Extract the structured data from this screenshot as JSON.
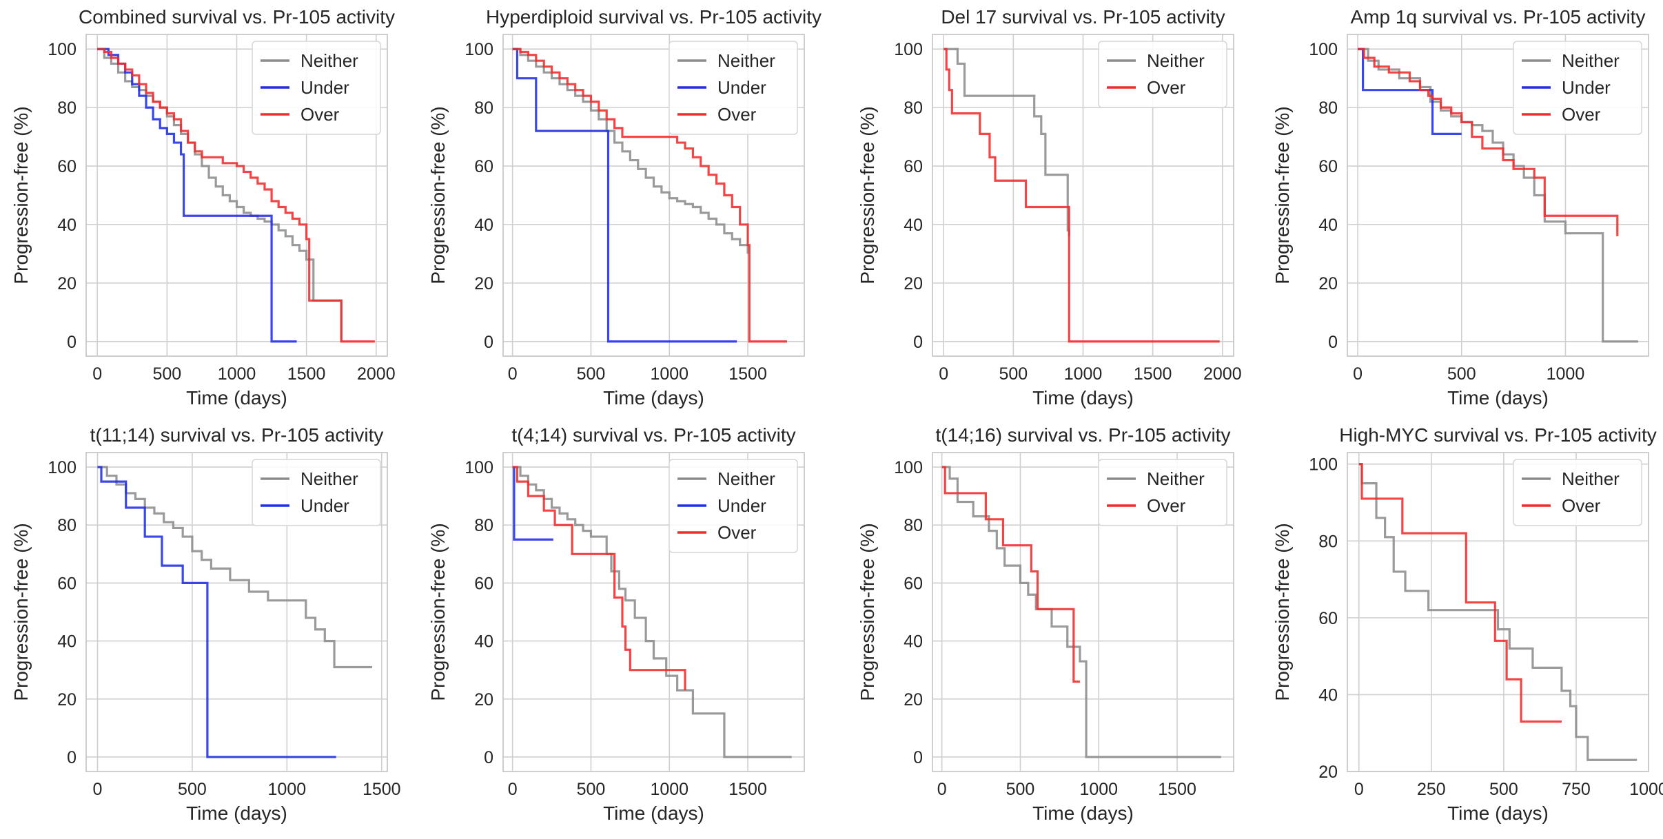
{
  "figure": {
    "colors": {
      "Neither": "#8c8c8c",
      "Under": "#1f2fe6",
      "Over": "#f02b2b",
      "grid": "#cfcfcf",
      "spine": "#c9c9c9"
    }
  },
  "chart_data": [
    {
      "type": "line",
      "title": "Combined survival vs. Pr-105 activity",
      "xlabel": "Time (days)",
      "ylabel": "Progression-free (%)",
      "xlim": [
        -80,
        2080
      ],
      "ylim": [
        -5,
        105
      ],
      "xticks": [
        0,
        500,
        1000,
        1500,
        2000
      ],
      "yticks": [
        0,
        20,
        40,
        60,
        80,
        100
      ],
      "legend": "top-right",
      "series": [
        {
          "name": "Neither",
          "x": [
            0,
            50,
            100,
            150,
            200,
            250,
            300,
            350,
            400,
            450,
            500,
            550,
            600,
            650,
            700,
            750,
            800,
            850,
            900,
            950,
            1000,
            1050,
            1100,
            1150,
            1200,
            1250,
            1300,
            1350,
            1400,
            1450,
            1500,
            1550,
            1750
          ],
          "y": [
            100,
            97,
            95,
            92,
            89,
            87,
            86,
            84,
            82,
            80,
            77,
            74,
            71,
            68,
            64,
            60,
            56,
            53,
            50,
            48,
            46,
            44,
            43,
            42,
            41,
            40,
            38,
            36,
            33,
            31,
            28,
            14,
            0
          ]
        },
        {
          "name": "Under",
          "x": [
            0,
            80,
            150,
            200,
            250,
            300,
            350,
            400,
            450,
            500,
            550,
            600,
            620,
            1250,
            1430
          ],
          "y": [
            100,
            98,
            95,
            92,
            88,
            84,
            80,
            76,
            73,
            71,
            68,
            64,
            43,
            0,
            0
          ]
        },
        {
          "name": "Over",
          "x": [
            0,
            50,
            100,
            150,
            200,
            250,
            300,
            350,
            400,
            450,
            500,
            550,
            600,
            650,
            700,
            750,
            800,
            900,
            1000,
            1050,
            1100,
            1150,
            1200,
            1250,
            1300,
            1350,
            1400,
            1450,
            1500,
            1520,
            1750,
            1990
          ],
          "y": [
            100,
            99,
            97,
            95,
            93,
            91,
            88,
            85,
            82,
            80,
            78,
            76,
            72,
            68,
            65,
            63,
            63,
            61,
            60,
            58,
            56,
            54,
            52,
            48,
            46,
            44,
            42,
            40,
            35,
            14,
            0,
            0
          ]
        }
      ]
    },
    {
      "type": "line",
      "title": "Hyperdiploid survival vs. Pr-105 activity",
      "xlabel": "Time (days)",
      "ylabel": "Progression-free (%)",
      "xlim": [
        -60,
        1860
      ],
      "ylim": [
        -5,
        105
      ],
      "xticks": [
        0,
        500,
        1000,
        1500
      ],
      "yticks": [
        0,
        20,
        40,
        60,
        80,
        100
      ],
      "legend": "top-right",
      "series": [
        {
          "name": "Neither",
          "x": [
            0,
            50,
            100,
            150,
            200,
            250,
            300,
            350,
            400,
            450,
            500,
            550,
            600,
            650,
            700,
            750,
            800,
            850,
            900,
            950,
            1000,
            1050,
            1100,
            1150,
            1200,
            1250,
            1300,
            1350,
            1400,
            1450,
            1500
          ],
          "y": [
            100,
            98,
            96,
            94,
            92,
            90,
            88,
            86,
            84,
            82,
            79,
            76,
            72,
            68,
            65,
            62,
            59,
            56,
            53,
            51,
            49,
            48,
            47,
            46,
            44,
            42,
            40,
            37,
            35,
            33,
            30
          ]
        },
        {
          "name": "Under",
          "x": [
            0,
            30,
            150,
            610,
            1430
          ],
          "y": [
            100,
            90,
            72,
            0,
            0
          ]
        },
        {
          "name": "Over",
          "x": [
            0,
            50,
            100,
            150,
            200,
            250,
            300,
            350,
            400,
            450,
            500,
            550,
            600,
            650,
            700,
            1000,
            1050,
            1100,
            1150,
            1200,
            1250,
            1300,
            1350,
            1400,
            1450,
            1500,
            1510,
            1750
          ],
          "y": [
            100,
            99,
            98,
            96,
            94,
            92,
            90,
            88,
            86,
            84,
            82,
            79,
            76,
            73,
            70,
            70,
            68,
            66,
            63,
            60,
            57,
            54,
            50,
            46,
            40,
            33,
            0,
            0
          ]
        }
      ]
    },
    {
      "type": "line",
      "title": "Del 17 survival vs. Pr-105 activity",
      "xlabel": "Time (days)",
      "ylabel": "Progression-free (%)",
      "xlim": [
        -80,
        2080
      ],
      "ylim": [
        -5,
        105
      ],
      "xticks": [
        0,
        500,
        1000,
        1500,
        2000
      ],
      "yticks": [
        0,
        20,
        40,
        60,
        80,
        100
      ],
      "legend": "top-right",
      "series": [
        {
          "name": "Neither",
          "x": [
            0,
            100,
            150,
            600,
            650,
            700,
            730,
            860,
            890,
            900
          ],
          "y": [
            100,
            95,
            84,
            84,
            77,
            71,
            57,
            57,
            38,
            36
          ]
        },
        {
          "name": "Over",
          "x": [
            0,
            20,
            40,
            60,
            200,
            260,
            330,
            370,
            590,
            880,
            900,
            1980
          ],
          "y": [
            100,
            93,
            86,
            78,
            78,
            71,
            63,
            55,
            46,
            46,
            0,
            0
          ]
        }
      ]
    },
    {
      "type": "line",
      "title": "Amp 1q survival vs. Pr-105 activity",
      "xlabel": "Time (days)",
      "ylabel": "Progression-free (%)",
      "xlim": [
        -50,
        1400
      ],
      "ylim": [
        -5,
        105
      ],
      "xticks": [
        0,
        500,
        1000
      ],
      "yticks": [
        0,
        20,
        40,
        60,
        80,
        100
      ],
      "legend": "top-right",
      "series": [
        {
          "name": "Neither",
          "x": [
            0,
            50,
            100,
            200,
            300,
            350,
            400,
            450,
            500,
            550,
            600,
            650,
            700,
            750,
            800,
            850,
            900,
            1000,
            1180,
            1350
          ],
          "y": [
            100,
            96,
            93,
            90,
            87,
            82,
            79,
            77,
            75,
            74,
            72,
            68,
            64,
            60,
            56,
            50,
            41,
            37,
            0,
            0
          ]
        },
        {
          "name": "Under",
          "x": [
            0,
            25,
            350,
            360,
            500
          ],
          "y": [
            100,
            86,
            86,
            71,
            71
          ]
        },
        {
          "name": "Over",
          "x": [
            0,
            30,
            80,
            150,
            250,
            300,
            340,
            360,
            400,
            450,
            500,
            550,
            600,
            700,
            750,
            850,
            900,
            1000,
            1230,
            1250
          ],
          "y": [
            100,
            97,
            94,
            92,
            89,
            86,
            84,
            83,
            80,
            78,
            75,
            70,
            66,
            62,
            59,
            56,
            43,
            43,
            43,
            36
          ]
        }
      ]
    },
    {
      "type": "line",
      "title": "t(11;14) survival vs. Pr-105 activity",
      "xlabel": "Time (days)",
      "ylabel": "Progression-free (%)",
      "xlim": [
        -60,
        1530
      ],
      "ylim": [
        -5,
        105
      ],
      "xticks": [
        0,
        500,
        1000,
        1500
      ],
      "yticks": [
        0,
        20,
        40,
        60,
        80,
        100
      ],
      "legend": "top-right",
      "series": [
        {
          "name": "Neither",
          "x": [
            0,
            50,
            100,
            150,
            200,
            250,
            300,
            350,
            400,
            450,
            500,
            550,
            600,
            700,
            800,
            900,
            1100,
            1150,
            1200,
            1250,
            1450
          ],
          "y": [
            100,
            97,
            94,
            91,
            89,
            86,
            84,
            81,
            79,
            76,
            71,
            68,
            65,
            61,
            57,
            54,
            48,
            44,
            40,
            31,
            31
          ]
        },
        {
          "name": "Under",
          "x": [
            0,
            20,
            150,
            250,
            340,
            450,
            580,
            1260
          ],
          "y": [
            100,
            95,
            86,
            76,
            66,
            60,
            0,
            0
          ]
        }
      ]
    },
    {
      "type": "line",
      "title": "t(4;14) survival vs. Pr-105 activity",
      "xlabel": "Time (days)",
      "ylabel": "Progression-free (%)",
      "xlim": [
        -60,
        1860
      ],
      "ylim": [
        -5,
        105
      ],
      "xticks": [
        0,
        500,
        1000,
        1500
      ],
      "yticks": [
        0,
        20,
        40,
        60,
        80,
        100
      ],
      "legend": "top-right",
      "series": [
        {
          "name": "Neither",
          "x": [
            0,
            50,
            100,
            150,
            200,
            250,
            300,
            350,
            400,
            450,
            500,
            600,
            630,
            680,
            720,
            780,
            850,
            900,
            980,
            1050,
            1150,
            1350,
            1780
          ],
          "y": [
            100,
            97,
            94,
            92,
            89,
            86,
            84,
            82,
            80,
            78,
            76,
            70,
            64,
            58,
            54,
            48,
            40,
            34,
            28,
            23,
            15,
            0,
            0
          ]
        },
        {
          "name": "Under",
          "x": [
            0,
            10,
            260
          ],
          "y": [
            100,
            75,
            75
          ]
        },
        {
          "name": "Over",
          "x": [
            0,
            30,
            100,
            200,
            270,
            380,
            620,
            650,
            700,
            720,
            750,
            1100
          ],
          "y": [
            100,
            95,
            90,
            85,
            80,
            70,
            70,
            55,
            45,
            37,
            30,
            23
          ]
        }
      ]
    },
    {
      "type": "line",
      "title": "t(14;16) survival vs. Pr-105 activity",
      "xlabel": "Time (days)",
      "ylabel": "Progression-free (%)",
      "xlim": [
        -60,
        1860
      ],
      "ylim": [
        -5,
        105
      ],
      "xticks": [
        0,
        500,
        1000,
        1500
      ],
      "yticks": [
        0,
        20,
        40,
        60,
        80,
        100
      ],
      "legend": "top-right",
      "series": [
        {
          "name": "Neither",
          "x": [
            0,
            50,
            100,
            200,
            300,
            350,
            400,
            500,
            550,
            600,
            700,
            800,
            880,
            920,
            1780
          ],
          "y": [
            100,
            96,
            88,
            83,
            78,
            72,
            66,
            60,
            56,
            51,
            45,
            38,
            33,
            0,
            0
          ]
        },
        {
          "name": "Over",
          "x": [
            0,
            20,
            280,
            390,
            570,
            610,
            840,
            880
          ],
          "y": [
            100,
            91,
            82,
            73,
            64,
            51,
            26,
            26
          ]
        }
      ]
    },
    {
      "type": "line",
      "title": "High-MYC survival vs. Pr-105 activity",
      "xlabel": "Time (days)",
      "ylabel": "Progression-free (%)",
      "xlim": [
        -40,
        1000
      ],
      "ylim": [
        20,
        103
      ],
      "xticks": [
        0,
        250,
        500,
        750,
        1000
      ],
      "yticks": [
        20,
        40,
        60,
        80,
        100
      ],
      "legend": "top-right",
      "series": [
        {
          "name": "Neither",
          "x": [
            0,
            10,
            60,
            90,
            120,
            160,
            240,
            480,
            520,
            600,
            700,
            730,
            750,
            790,
            960
          ],
          "y": [
            100,
            95,
            86,
            81,
            72,
            67,
            62,
            57,
            52,
            47,
            41,
            37,
            29,
            23,
            23
          ]
        },
        {
          "name": "Over",
          "x": [
            0,
            10,
            150,
            370,
            470,
            510,
            560,
            700
          ],
          "y": [
            100,
            91,
            82,
            64,
            54,
            44,
            33,
            33
          ]
        }
      ]
    }
  ]
}
